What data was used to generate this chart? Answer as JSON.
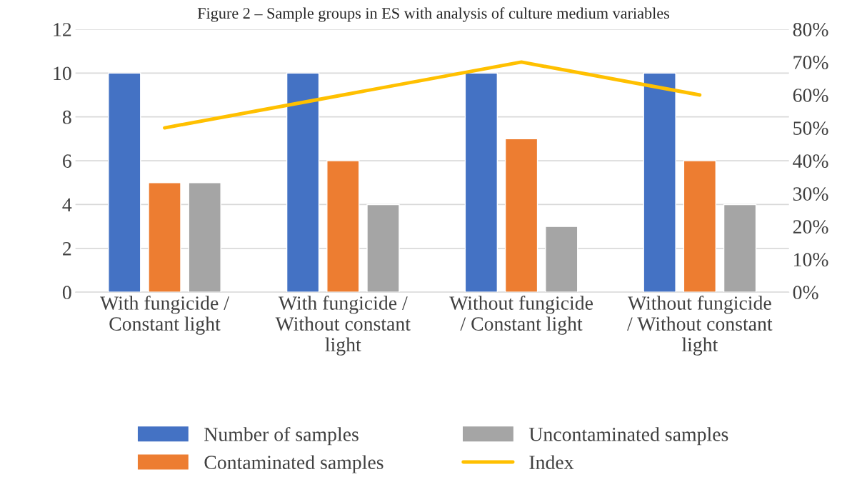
{
  "chart_data": {
    "type": "bar",
    "title": "Figure 2 – Sample groups in ES with analysis of culture medium variables",
    "categories": [
      "With fungicide / Constant light",
      "With fungicide / Without constant light",
      "Without fungicide / Constant light",
      "Without fungicide / Without constant light"
    ],
    "series": [
      {
        "name": "Number of samples",
        "color": "#4472c4",
        "values": [
          10,
          10,
          10,
          10
        ]
      },
      {
        "name": "Contaminated samples",
        "color": "#ed7d31",
        "values": [
          5,
          6,
          7,
          6
        ]
      },
      {
        "name": "Uncontaminated samples",
        "color": "#a5a5a5",
        "values": [
          5,
          4,
          3,
          4
        ]
      },
      {
        "name": "Index",
        "color": "#ffc000",
        "type": "line",
        "axis": "y2",
        "values": [
          50,
          60,
          70,
          60
        ]
      }
    ],
    "ylim": [
      0,
      12
    ],
    "yticks": [
      0,
      2,
      4,
      6,
      8,
      10,
      12
    ],
    "y2lim": [
      0,
      80
    ],
    "y2ticks": [
      {
        "value": 0,
        "label": "0%"
      },
      {
        "value": 10,
        "label": "10%"
      },
      {
        "value": 20,
        "label": "20%"
      },
      {
        "value": 30,
        "label": "30%"
      },
      {
        "value": 40,
        "label": "40%"
      },
      {
        "value": 50,
        "label": "50%"
      },
      {
        "value": 60,
        "label": "60%"
      },
      {
        "value": 70,
        "label": "70%"
      },
      {
        "value": 80,
        "label": "80%"
      }
    ],
    "grid": "y",
    "legend": "bottom"
  }
}
